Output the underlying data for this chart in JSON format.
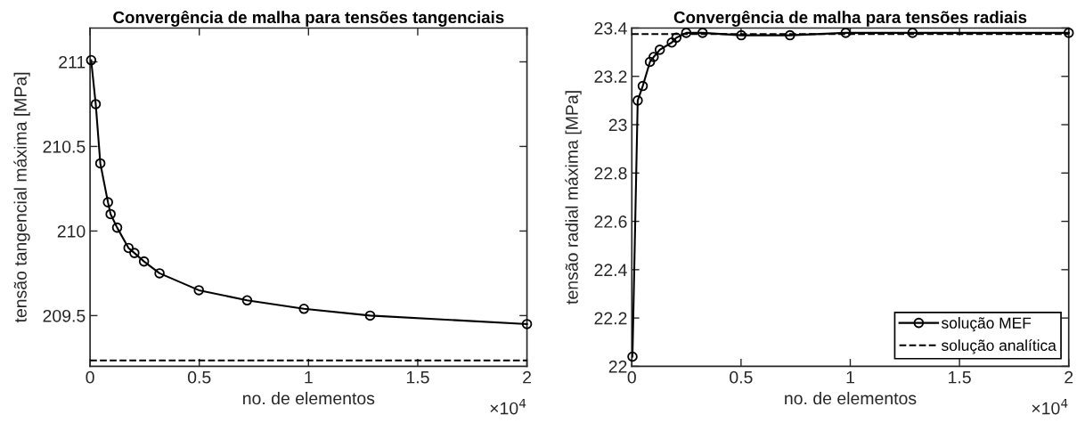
{
  "chart_data": [
    {
      "type": "line",
      "title": "Convergência de malha para tensões tangenciais",
      "xlabel": "no. de elementos",
      "ylabel": "tensão tangencial máxima [MPa]",
      "xlim": [
        0,
        2
      ],
      "xticks": [
        0,
        0.5,
        1,
        1.5,
        2
      ],
      "ylim": [
        209.2,
        211.2
      ],
      "yticks": [
        209.5,
        210,
        210.5,
        211
      ],
      "grid": false,
      "legend": false,
      "annotations": [
        "×10$^{4}$"
      ],
      "series": [
        {
          "color": "#000000",
          "marker": "circle",
          "line_style": "solid",
          "x": [
            0.005,
            0.026,
            0.047,
            0.082,
            0.094,
            0.124,
            0.176,
            0.203,
            0.247,
            0.318,
            0.498,
            0.719,
            0.979,
            1.282,
            2.0
          ],
          "values": [
            211.01,
            210.75,
            210.4,
            210.17,
            210.1,
            210.02,
            209.9,
            209.87,
            209.82,
            209.75,
            209.65,
            209.59,
            209.54,
            209.5,
            209.45
          ]
        },
        {
          "color": "#000000",
          "marker": "none",
          "line_style": "dashed",
          "x": [
            0,
            2
          ],
          "values": [
            209.235,
            209.235
          ]
        }
      ]
    },
    {
      "type": "line",
      "title": "Convergência de malha para tensões radiais",
      "xlabel": "no. de elementos",
      "ylabel": "tensão radial máxima [MPa]",
      "xlim": [
        0,
        2
      ],
      "xticks": [
        0,
        0.5,
        1,
        1.5,
        2
      ],
      "ylim": [
        22,
        23.4
      ],
      "yticks": [
        22,
        22.2,
        22.4,
        22.6,
        22.8,
        23,
        23.2,
        23.4
      ],
      "grid": false,
      "legend": "bottom right",
      "annotations": [
        "×10$^{4}$"
      ],
      "series": [
        {
          "name": "solução MEF",
          "color": "#000000",
          "marker": "circle",
          "line_style": "solid",
          "x": [
            0.003,
            0.027,
            0.05,
            0.083,
            0.1,
            0.128,
            0.183,
            0.204,
            0.249,
            0.324,
            0.501,
            0.724,
            0.979,
            1.285,
            2.0
          ],
          "values": [
            22.04,
            23.1,
            23.16,
            23.26,
            23.28,
            23.31,
            23.34,
            23.36,
            23.38,
            23.38,
            23.37,
            23.37,
            23.38,
            23.38,
            23.38
          ]
        },
        {
          "name": "solução analítica",
          "color": "#000000",
          "marker": "none",
          "line_style": "dashed",
          "x": [
            0,
            2
          ],
          "values": [
            23.375,
            23.375
          ]
        }
      ]
    }
  ]
}
